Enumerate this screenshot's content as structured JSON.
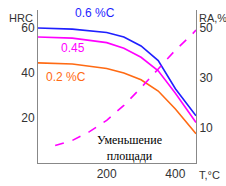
{
  "chart_data": {
    "type": "line",
    "xlabel": "T,°C",
    "ylabel": "HRC",
    "y2label": "RA,%",
    "xlim": [
      0,
      460
    ],
    "xticks": [
      200,
      400
    ],
    "ylim": [
      0,
      68
    ],
    "yticks": [
      20,
      40,
      60
    ],
    "y2lim": [
      -4,
      57
    ],
    "y2ticks": [
      10,
      30,
      50
    ],
    "grid": false,
    "series": [
      {
        "name": "0.6 %C",
        "color": "#1f1fff",
        "line_style": "solid",
        "x": [
          0,
          100,
          200,
          250,
          300,
          350,
          400,
          450,
          460
        ],
        "values": [
          60,
          59.5,
          58,
          56,
          52,
          45.5,
          33,
          23,
          21
        ]
      },
      {
        "name": "0.45",
        "color": "#ff00ff",
        "line_style": "solid",
        "x": [
          0,
          100,
          200,
          250,
          300,
          350,
          400,
          450,
          460
        ],
        "values": [
          56,
          55.5,
          53.5,
          51,
          47,
          41,
          31,
          20,
          18
        ]
      },
      {
        "name": "0.2 %C",
        "color": "#ff6a13",
        "line_style": "solid",
        "x": [
          0,
          100,
          200,
          250,
          300,
          350,
          400,
          450,
          460
        ],
        "values": [
          44.5,
          44,
          42,
          40,
          37,
          32,
          24,
          15,
          13
        ]
      },
      {
        "name": "Уменьшение\nплощади",
        "color": "#ff00ff",
        "line_style": "dash",
        "axis": "y2",
        "x": [
          50,
          100,
          150,
          200,
          250,
          300,
          350,
          400,
          450,
          460
        ],
        "values": [
          3,
          5,
          8.5,
          13,
          19,
          26,
          33.5,
          41,
          47.5,
          49
        ]
      }
    ]
  }
}
